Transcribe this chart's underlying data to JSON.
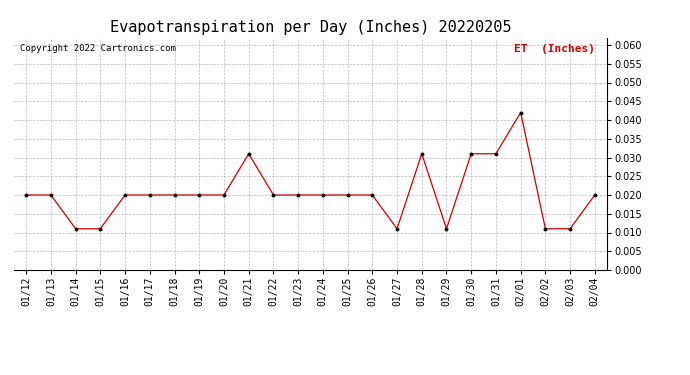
{
  "title": "Evapotranspiration per Day (Inches) 20220205",
  "copyright_text": "Copyright 2022 Cartronics.com",
  "legend_label": "ET  (Inches)",
  "x_labels": [
    "01/12",
    "01/13",
    "01/14",
    "01/15",
    "01/16",
    "01/17",
    "01/18",
    "01/19",
    "01/20",
    "01/21",
    "01/22",
    "01/23",
    "01/24",
    "01/25",
    "01/26",
    "01/27",
    "01/28",
    "01/29",
    "01/30",
    "01/31",
    "02/01",
    "02/02",
    "02/03",
    "02/04"
  ],
  "y_values": [
    0.02,
    0.02,
    0.011,
    0.011,
    0.02,
    0.02,
    0.02,
    0.02,
    0.02,
    0.031,
    0.02,
    0.02,
    0.02,
    0.02,
    0.02,
    0.011,
    0.031,
    0.011,
    0.031,
    0.031,
    0.042,
    0.011,
    0.011,
    0.02
  ],
  "line_color": "#cc0000",
  "marker_color": "#000000",
  "ylim": [
    0.0,
    0.062
  ],
  "yticks": [
    0.0,
    0.005,
    0.01,
    0.015,
    0.02,
    0.025,
    0.03,
    0.035,
    0.04,
    0.045,
    0.05,
    0.055,
    0.06
  ],
  "background_color": "#ffffff",
  "grid_color": "#bbbbbb",
  "title_fontsize": 11,
  "tick_fontsize": 7,
  "legend_color": "#cc0000",
  "legend_fontsize": 8,
  "copyright_color": "#000000",
  "copyright_fontsize": 6.5
}
